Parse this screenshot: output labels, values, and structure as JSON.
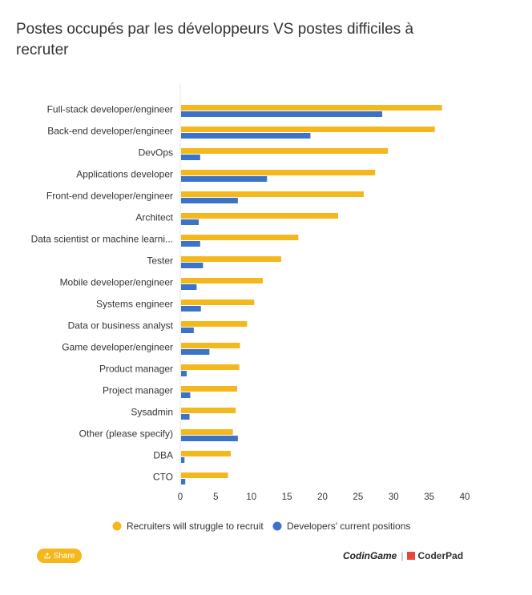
{
  "chart_data": {
    "type": "bar",
    "orientation": "horizontal",
    "title": "Postes occupés par les développeurs VS postes difficiles à recruter",
    "categories": [
      "Full-stack developer/engineer",
      "Back-end developer/engineer",
      "DevOps",
      "Applications developer",
      "Front-end developer/engineer",
      "Architect",
      "Data scientist or machine learni...",
      "Tester",
      "Mobile developer/engineer",
      "Systems engineer",
      "Data or business analyst",
      "Game developer/engineer",
      "Product manager",
      "Project manager",
      "Sysadmin",
      "Other (please specify)",
      "DBA",
      "CTO"
    ],
    "series": [
      {
        "name": "Recruiters will struggle to recruit",
        "color": "#f5b81c",
        "values": [
          36.8,
          35.8,
          29.2,
          27.4,
          25.8,
          22.2,
          16.6,
          14.2,
          11.6,
          10.4,
          9.4,
          8.4,
          8.3,
          8.0,
          7.8,
          7.4,
          7.1,
          6.7
        ]
      },
      {
        "name": "Developers' current positions",
        "color": "#3a73c8",
        "values": [
          28.4,
          18.3,
          2.8,
          12.2,
          8.1,
          2.6,
          2.8,
          3.2,
          2.3,
          2.9,
          1.9,
          4.1,
          0.9,
          1.4,
          1.3,
          8.1,
          0.6,
          0.7
        ]
      }
    ],
    "xlabel": "",
    "ylabel": "",
    "xlim": [
      0,
      40
    ],
    "xticks": [
      0,
      5,
      10,
      15,
      20,
      25,
      30,
      35,
      40
    ],
    "grid": false,
    "legend_position": "bottom"
  },
  "share": {
    "label": "Share"
  },
  "logos": {
    "codingame": "CodinGame",
    "separator": "|",
    "coderpad": "CoderPad"
  }
}
